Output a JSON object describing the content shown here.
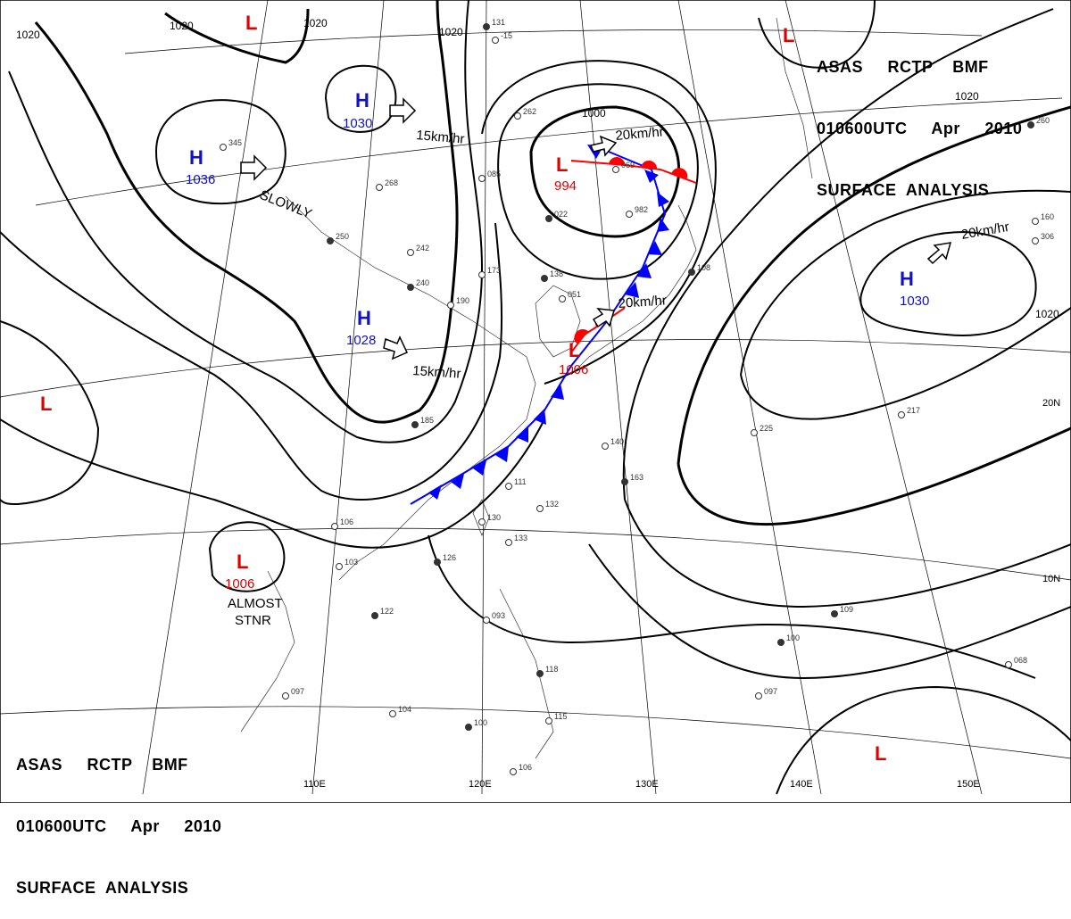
{
  "header": {
    "line1": "ASAS     RCTP    BMF",
    "line2": "010600UTC     Apr     2010",
    "line3": "SURFACE  ANALYSIS"
  },
  "colors": {
    "high": "#1010d0",
    "low": "#e00000",
    "isobar": "#000000",
    "cold_front": "#0000ff",
    "warm_front": "#ff0000",
    "grid": "#000000"
  },
  "isobar_labels": [
    "1020",
    "1020",
    "1020",
    "1020",
    "1020",
    "1000",
    "1020"
  ],
  "pressure_centers": [
    {
      "type": "H",
      "value": "1036"
    },
    {
      "type": "H",
      "value": "1030"
    },
    {
      "type": "H",
      "value": "1028"
    },
    {
      "type": "H",
      "value": "1030"
    },
    {
      "type": "L",
      "value": "994"
    },
    {
      "type": "L",
      "value": "1006"
    },
    {
      "type": "L",
      "value": "1006"
    },
    {
      "type": "L",
      "value": ""
    },
    {
      "type": "L",
      "value": ""
    },
    {
      "type": "L",
      "value": ""
    },
    {
      "type": "L",
      "value": ""
    }
  ],
  "motions": [
    "SLOWLY",
    "15km/hr",
    "15km/hr",
    "20km/hr",
    "20km/hr",
    "20km/hr"
  ],
  "notes": [
    "ALMOST",
    "STNR"
  ],
  "longitude_labels": [
    "110E",
    "120E",
    "130E",
    "140E",
    "150E"
  ],
  "latitude_labels": [
    "20N",
    "10N"
  ],
  "station_labels": [
    "131",
    "-15",
    "345",
    "250",
    "242",
    "268",
    "240",
    "173",
    "085",
    "138",
    "051",
    "190",
    "185",
    "106",
    "103",
    "122",
    "097",
    "104",
    "100",
    "130",
    "133",
    "126",
    "111",
    "093",
    "118",
    "115",
    "106",
    "163",
    "140",
    "132",
    "100",
    "097",
    "068",
    "109",
    "225",
    "217",
    "260",
    "160",
    "306",
    "108",
    "982",
    "069",
    "022",
    "262"
  ]
}
